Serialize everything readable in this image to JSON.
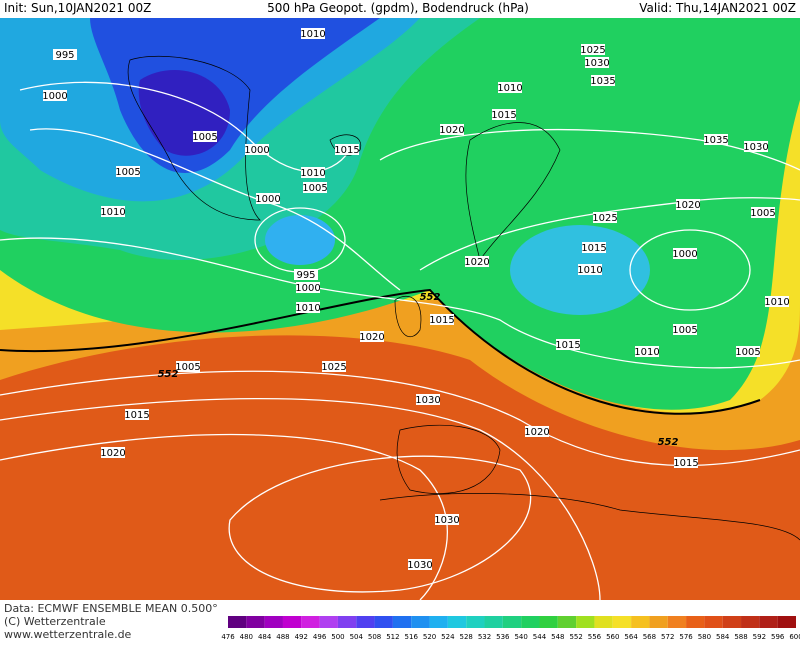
{
  "header": {
    "init": "Init: Sun,10JAN2021 00Z",
    "title": "500 hPa Geopot. (gpdm), Bodendruck (hPa)",
    "valid": "Valid: Thu,14JAN2021 00Z"
  },
  "isobar_labels": [
    "1010",
    "995",
    "1025",
    "1030",
    "1035",
    "1000",
    "1010",
    "1015",
    "1020",
    "1005",
    "1000",
    "1015",
    "1035",
    "1030",
    "1005",
    "1010",
    "1005",
    "1000",
    "1020",
    "1010",
    "1025",
    "1005",
    "1015",
    "1000",
    "1010",
    "1020",
    "995",
    "1000",
    "1010",
    "1010",
    "1015",
    "1005",
    "1020",
    "1015",
    "1010",
    "1005",
    "1005",
    "1025",
    "1030",
    "1015",
    "1020",
    "1020",
    "1015",
    "1030",
    "1030"
  ],
  "contour_labels": [
    "552",
    "552",
    "552"
  ],
  "footer": {
    "data": "Data: ECMWF ENSEMBLE MEAN 0.500°",
    "copyright": "(C) Wetterzentrale",
    "url": "www.wetterzentrale.de"
  },
  "scale": [
    476,
    480,
    484,
    488,
    492,
    496,
    500,
    504,
    508,
    512,
    516,
    520,
    524,
    528,
    532,
    536,
    540,
    544,
    548,
    552,
    556,
    560,
    564,
    568,
    572,
    576,
    580,
    584,
    588,
    592,
    596,
    600
  ]
}
